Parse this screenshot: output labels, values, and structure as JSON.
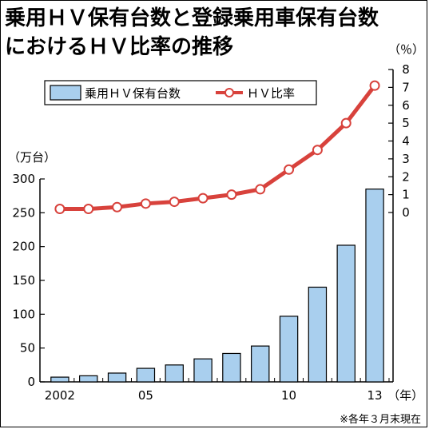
{
  "title_lines": [
    "乗用ＨＶ保有台数と登録乗用車保有台数",
    "におけるＨＶ比率の推移"
  ],
  "note": "※各年３月末現在",
  "chart_data": {
    "type": "bar+line",
    "title": "乗用ＨＶ保有台数と登録乗用車保有台数におけるＨＶ比率の推移",
    "x": [
      2002,
      2003,
      2004,
      2005,
      2006,
      2007,
      2008,
      2009,
      2010,
      2011,
      2012,
      2013
    ],
    "x_tick_labels": [
      {
        "x": 2002,
        "label": "2002"
      },
      {
        "x": 2005,
        "label": "05"
      },
      {
        "x": 2010,
        "label": "10"
      },
      {
        "x": 2013,
        "label": "13"
      }
    ],
    "x_unit": "（年）",
    "series": [
      {
        "name": "乗用ＨＶ保有台数",
        "kind": "bar",
        "axis": "left",
        "color": "#a9cfee",
        "values": [
          7,
          9,
          13,
          20,
          25,
          34,
          42,
          53,
          97,
          140,
          202,
          285
        ]
      },
      {
        "name": "ＨＶ比率",
        "kind": "line",
        "axis": "right",
        "color": "#d8423c",
        "values": [
          0.2,
          0.2,
          0.3,
          0.5,
          0.6,
          0.8,
          1.0,
          1.3,
          2.4,
          3.5,
          5.0,
          7.1
        ]
      }
    ],
    "y_left": {
      "unit": "（万台）",
      "range": [
        0,
        300
      ],
      "ticks": [
        0,
        50,
        100,
        150,
        200,
        250,
        300
      ]
    },
    "y_right": {
      "unit": "（％）",
      "range": [
        0,
        8
      ],
      "ticks": [
        0,
        1,
        2,
        3,
        4,
        5,
        6,
        7,
        8
      ]
    },
    "legend_position": "top-left"
  }
}
